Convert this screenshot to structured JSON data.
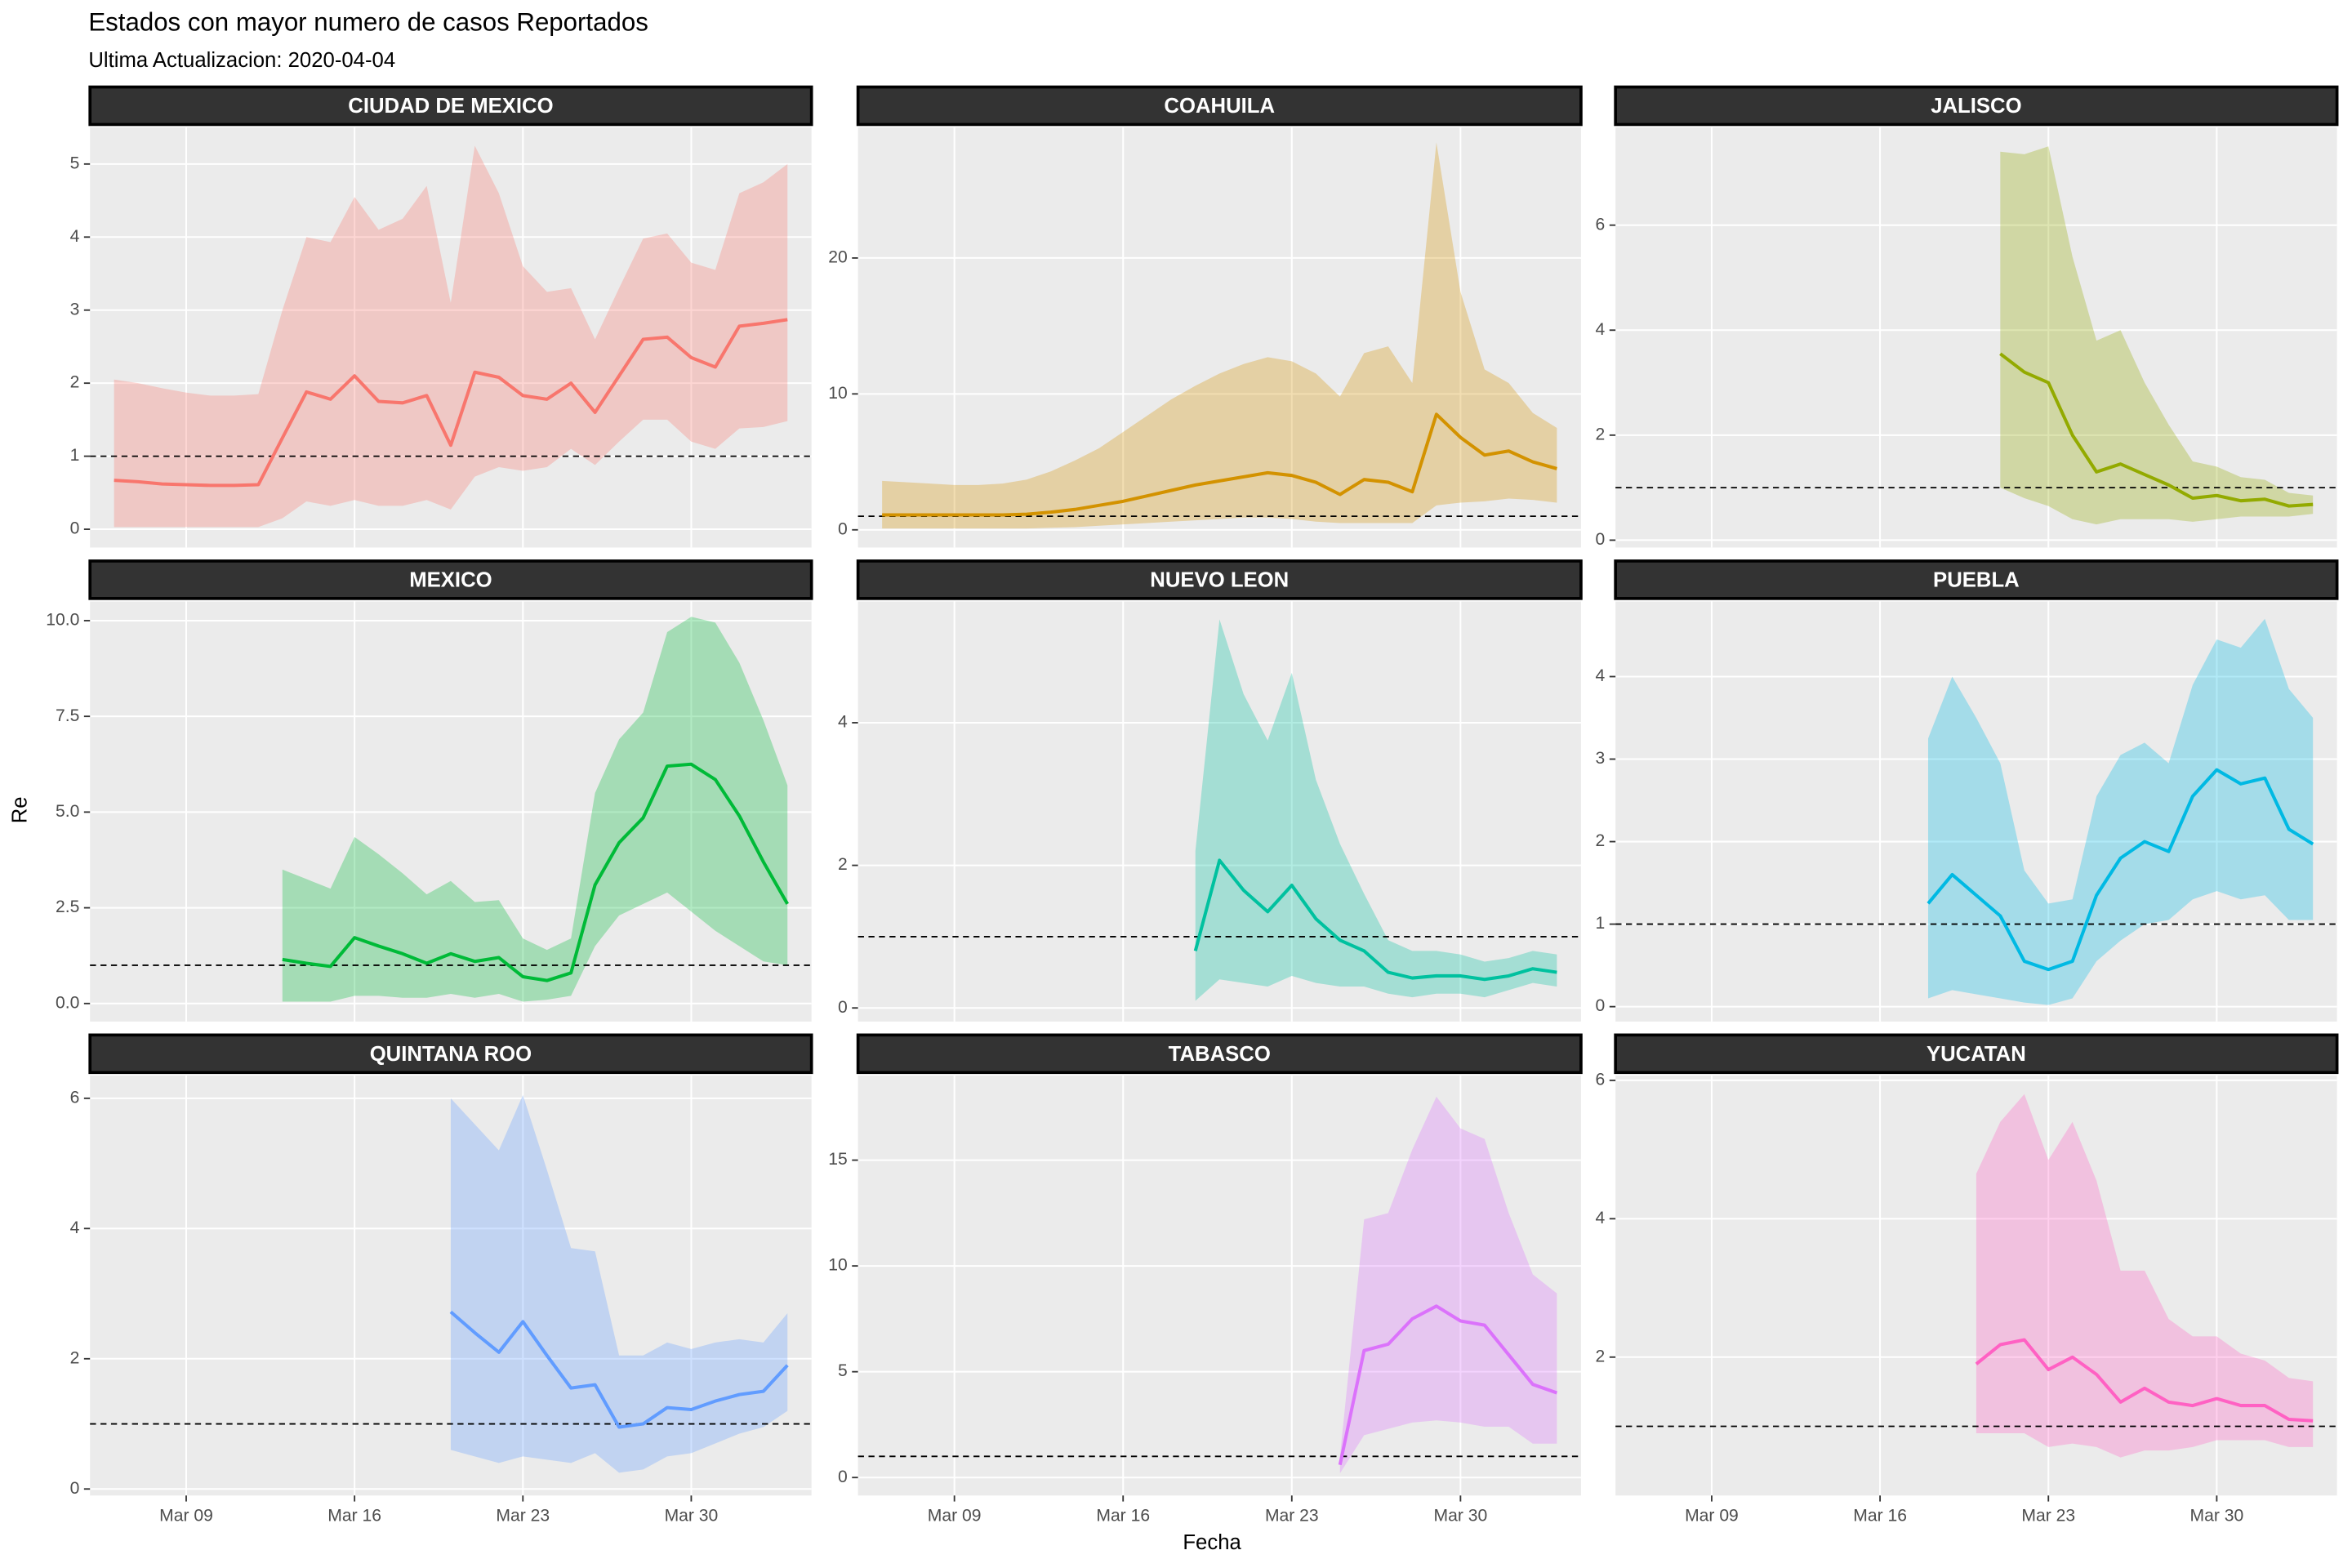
{
  "chart_data": {
    "type": "line",
    "title": "Estados con mayor numero de casos Reportados",
    "subtitle": "Ultima Actualizacion: 2020-04-04",
    "x_label": "Fecha",
    "y_label": "Re",
    "x": [
      "Mar 06",
      "Mar 07",
      "Mar 08",
      "Mar 09",
      "Mar 10",
      "Mar 11",
      "Mar 12",
      "Mar 13",
      "Mar 14",
      "Mar 15",
      "Mar 16",
      "Mar 17",
      "Mar 18",
      "Mar 19",
      "Mar 20",
      "Mar 21",
      "Mar 22",
      "Mar 23",
      "Mar 24",
      "Mar 25",
      "Mar 26",
      "Mar 27",
      "Mar 28",
      "Mar 29",
      "Mar 30",
      "Mar 31",
      "Apr 01",
      "Apr 02",
      "Apr 03"
    ],
    "xlim": [
      "Mar 05",
      "Apr 04"
    ],
    "xticks": [
      "Mar 09",
      "Mar 16",
      "Mar 23",
      "Mar 30"
    ],
    "reference_line": 1,
    "grid": true,
    "panels": [
      {
        "title": "CIUDAD DE MEXICO",
        "color": "#F8766D",
        "ylim": [
          -0.25,
          5.5
        ],
        "yticks": [
          0,
          1,
          2,
          3,
          4,
          5
        ],
        "values": [
          0.67,
          0.65,
          0.62,
          0.61,
          0.6,
          0.6,
          0.61,
          1.25,
          1.88,
          1.78,
          2.1,
          1.75,
          1.73,
          1.83,
          1.15,
          2.15,
          2.08,
          1.83,
          1.78,
          2.0,
          1.6,
          2.1,
          2.6,
          2.63,
          2.35,
          2.22,
          2.78,
          2.82,
          2.87
        ],
        "upper": [
          2.05,
          2.0,
          1.93,
          1.87,
          1.83,
          1.83,
          1.85,
          3.0,
          4.0,
          3.93,
          4.55,
          4.1,
          4.25,
          4.7,
          3.1,
          5.25,
          4.6,
          3.6,
          3.25,
          3.3,
          2.6,
          3.3,
          3.98,
          4.05,
          3.65,
          3.55,
          4.6,
          4.75,
          5.0
        ],
        "lower": [
          0.03,
          0.03,
          0.03,
          0.03,
          0.03,
          0.03,
          0.03,
          0.15,
          0.38,
          0.32,
          0.4,
          0.32,
          0.32,
          0.4,
          0.27,
          0.72,
          0.85,
          0.8,
          0.85,
          1.1,
          0.88,
          1.2,
          1.5,
          1.5,
          1.2,
          1.1,
          1.38,
          1.4,
          1.48
        ]
      },
      {
        "title": "COAHUILA",
        "color": "#D39200",
        "ylim": [
          -1.3,
          29.6
        ],
        "yticks": [
          0,
          10,
          20
        ],
        "values": [
          1.1,
          1.1,
          1.1,
          1.1,
          1.1,
          1.1,
          1.15,
          1.3,
          1.5,
          1.8,
          2.1,
          2.5,
          2.9,
          3.3,
          3.6,
          3.9,
          4.2,
          4.0,
          3.5,
          2.6,
          3.7,
          3.5,
          2.8,
          8.5,
          6.8,
          5.5,
          5.8,
          5.0,
          4.5
        ],
        "upper": [
          3.6,
          3.5,
          3.4,
          3.3,
          3.3,
          3.4,
          3.7,
          4.3,
          5.1,
          6.0,
          7.2,
          8.4,
          9.6,
          10.6,
          11.5,
          12.2,
          12.7,
          12.4,
          11.5,
          9.8,
          13.0,
          13.5,
          10.8,
          28.5,
          17.5,
          11.8,
          10.8,
          8.6,
          7.5
        ],
        "lower": [
          0.1,
          0.1,
          0.1,
          0.1,
          0.1,
          0.1,
          0.1,
          0.15,
          0.2,
          0.3,
          0.4,
          0.5,
          0.6,
          0.7,
          0.8,
          0.9,
          0.9,
          0.8,
          0.6,
          0.5,
          0.5,
          0.5,
          0.5,
          1.8,
          2.0,
          2.1,
          2.3,
          2.2,
          2.0
        ]
      },
      {
        "title": "JALISCO",
        "color": "#93AA00",
        "ylim": [
          -0.14,
          7.86
        ],
        "yticks": [
          0,
          2,
          4,
          6
        ],
        "values": [
          null,
          null,
          null,
          null,
          null,
          null,
          null,
          null,
          null,
          null,
          null,
          null,
          null,
          null,
          null,
          3.55,
          3.2,
          3.0,
          2.0,
          1.3,
          1.45,
          1.25,
          1.05,
          0.8,
          0.85,
          0.75,
          0.78,
          0.65,
          0.68
        ],
        "upper": [
          null,
          null,
          null,
          null,
          null,
          null,
          null,
          null,
          null,
          null,
          null,
          null,
          null,
          null,
          null,
          7.4,
          7.35,
          7.5,
          5.4,
          3.8,
          4.0,
          3.0,
          2.2,
          1.5,
          1.4,
          1.2,
          1.15,
          0.9,
          0.85
        ],
        "lower": [
          null,
          null,
          null,
          null,
          null,
          null,
          null,
          null,
          null,
          null,
          null,
          null,
          null,
          null,
          null,
          1.0,
          0.8,
          0.65,
          0.4,
          0.3,
          0.4,
          0.4,
          0.4,
          0.35,
          0.4,
          0.45,
          0.45,
          0.45,
          0.5
        ]
      },
      {
        "title": "MEXICO",
        "color": "#00BA38",
        "ylim": [
          -0.47,
          10.5
        ],
        "yticks": [
          {
            "value": 0,
            "label": "0.0"
          },
          2.5,
          {
            "value": 5,
            "label": "5.0"
          },
          7.5,
          {
            "value": 10,
            "label": "10.0"
          }
        ],
        "values": [
          null,
          null,
          null,
          null,
          null,
          null,
          null,
          1.15,
          1.05,
          0.97,
          1.72,
          1.5,
          1.3,
          1.05,
          1.3,
          1.1,
          1.2,
          0.7,
          0.6,
          0.8,
          3.1,
          4.2,
          4.85,
          6.2,
          6.25,
          5.85,
          4.9,
          3.7,
          2.6
        ],
        "upper": [
          null,
          null,
          null,
          null,
          null,
          null,
          null,
          3.5,
          3.25,
          3.0,
          4.35,
          3.9,
          3.4,
          2.85,
          3.2,
          2.65,
          2.7,
          1.7,
          1.4,
          1.7,
          5.5,
          6.9,
          7.6,
          9.7,
          10.1,
          9.95,
          8.9,
          7.4,
          5.7
        ],
        "lower": [
          null,
          null,
          null,
          null,
          null,
          null,
          null,
          0.05,
          0.05,
          0.05,
          0.2,
          0.2,
          0.15,
          0.15,
          0.25,
          0.15,
          0.25,
          0.05,
          0.1,
          0.2,
          1.5,
          2.3,
          2.6,
          2.9,
          2.4,
          1.9,
          1.5,
          1.1,
          1.0
        ]
      },
      {
        "title": "NUEVO LEON",
        "color": "#00C19F",
        "ylim": [
          -0.19,
          5.7
        ],
        "yticks": [
          0,
          2,
          4
        ],
        "values": [
          null,
          null,
          null,
          null,
          null,
          null,
          null,
          null,
          null,
          null,
          null,
          null,
          null,
          0.8,
          2.07,
          1.65,
          1.35,
          1.72,
          1.25,
          0.95,
          0.8,
          0.5,
          0.42,
          0.45,
          0.45,
          0.4,
          0.45,
          0.55,
          0.5
        ],
        "upper": [
          null,
          null,
          null,
          null,
          null,
          null,
          null,
          null,
          null,
          null,
          null,
          null,
          null,
          2.2,
          5.45,
          4.4,
          3.75,
          4.7,
          3.2,
          2.3,
          1.6,
          0.95,
          0.8,
          0.8,
          0.75,
          0.65,
          0.7,
          0.8,
          0.75
        ],
        "lower": [
          null,
          null,
          null,
          null,
          null,
          null,
          null,
          null,
          null,
          null,
          null,
          null,
          null,
          0.1,
          0.4,
          0.35,
          0.3,
          0.45,
          0.35,
          0.3,
          0.3,
          0.2,
          0.15,
          0.2,
          0.2,
          0.15,
          0.25,
          0.35,
          0.3
        ]
      },
      {
        "title": "PUEBLA",
        "color": "#00B9E3",
        "ylim": [
          -0.18,
          4.91
        ],
        "yticks": [
          0,
          1,
          2,
          3,
          4
        ],
        "values": [
          null,
          null,
          null,
          null,
          null,
          null,
          null,
          null,
          null,
          null,
          null,
          null,
          1.25,
          1.6,
          1.35,
          1.1,
          0.55,
          0.45,
          0.55,
          1.35,
          1.8,
          2.0,
          1.88,
          2.55,
          2.87,
          2.7,
          2.77,
          2.15,
          1.97
        ],
        "upper": [
          null,
          null,
          null,
          null,
          null,
          null,
          null,
          null,
          null,
          null,
          null,
          null,
          3.25,
          4.0,
          3.5,
          2.95,
          1.65,
          1.25,
          1.3,
          2.55,
          3.05,
          3.2,
          2.95,
          3.9,
          4.45,
          4.35,
          4.7,
          3.85,
          3.5
        ],
        "lower": [
          null,
          null,
          null,
          null,
          null,
          null,
          null,
          null,
          null,
          null,
          null,
          null,
          0.1,
          0.2,
          0.15,
          0.1,
          0.05,
          0.02,
          0.1,
          0.55,
          0.8,
          1.0,
          1.05,
          1.3,
          1.4,
          1.3,
          1.35,
          1.05,
          1.05
        ]
      },
      {
        "title": "QUINTANA ROO",
        "color": "#619CFF",
        "ylim": [
          -0.1,
          6.35
        ],
        "yticks": [
          0,
          2,
          4,
          6
        ],
        "values": [
          null,
          null,
          null,
          null,
          null,
          null,
          null,
          null,
          null,
          null,
          null,
          null,
          null,
          null,
          2.72,
          2.4,
          2.1,
          2.57,
          2.05,
          1.55,
          1.6,
          0.95,
          1.0,
          1.25,
          1.22,
          1.35,
          1.45,
          1.5,
          1.9
        ],
        "upper": [
          null,
          null,
          null,
          null,
          null,
          null,
          null,
          null,
          null,
          null,
          null,
          null,
          null,
          null,
          6.0,
          5.6,
          5.2,
          6.05,
          4.9,
          3.7,
          3.65,
          2.05,
          2.05,
          2.25,
          2.15,
          2.25,
          2.3,
          2.25,
          2.7
        ],
        "lower": [
          null,
          null,
          null,
          null,
          null,
          null,
          null,
          null,
          null,
          null,
          null,
          null,
          null,
          null,
          0.6,
          0.5,
          0.4,
          0.5,
          0.45,
          0.4,
          0.55,
          0.25,
          0.3,
          0.5,
          0.55,
          0.7,
          0.85,
          0.95,
          1.2
        ]
      },
      {
        "title": "TABASCO",
        "color": "#DB72FB",
        "ylim": [
          -0.85,
          19.0
        ],
        "yticks": [
          0,
          5,
          10,
          15
        ],
        "values": [
          null,
          null,
          null,
          null,
          null,
          null,
          null,
          null,
          null,
          null,
          null,
          null,
          null,
          null,
          null,
          null,
          null,
          null,
          null,
          0.6,
          6.0,
          6.3,
          7.5,
          8.1,
          7.4,
          7.2,
          5.8,
          4.4,
          4.0
        ],
        "upper": [
          null,
          null,
          null,
          null,
          null,
          null,
          null,
          null,
          null,
          null,
          null,
          null,
          null,
          null,
          null,
          null,
          null,
          null,
          null,
          1.0,
          12.2,
          12.5,
          15.5,
          18.0,
          16.5,
          16.0,
          12.5,
          9.6,
          8.7
        ],
        "lower": [
          null,
          null,
          null,
          null,
          null,
          null,
          null,
          null,
          null,
          null,
          null,
          null,
          null,
          null,
          null,
          null,
          null,
          null,
          null,
          0.2,
          2.0,
          2.3,
          2.6,
          2.7,
          2.6,
          2.4,
          2.4,
          1.6,
          1.6
        ]
      },
      {
        "title": "YUCATAN",
        "color": "#FF61C3",
        "ylim": [
          0,
          6.07
        ],
        "yticks": [
          2,
          4,
          6
        ],
        "values": [
          null,
          null,
          null,
          null,
          null,
          null,
          null,
          null,
          null,
          null,
          null,
          null,
          null,
          null,
          1.9,
          2.18,
          2.25,
          1.82,
          2.0,
          1.75,
          1.35,
          1.55,
          1.35,
          1.3,
          1.4,
          1.3,
          1.3,
          1.1,
          1.08
        ],
        "upper": [
          null,
          null,
          null,
          null,
          null,
          null,
          null,
          null,
          null,
          null,
          null,
          null,
          null,
          null,
          4.65,
          5.4,
          5.8,
          4.85,
          5.4,
          4.55,
          3.25,
          3.25,
          2.55,
          2.3,
          2.3,
          2.05,
          1.95,
          1.7,
          1.65
        ],
        "lower": [
          null,
          null,
          null,
          null,
          null,
          null,
          null,
          null,
          null,
          null,
          null,
          null,
          null,
          null,
          0.9,
          0.9,
          0.9,
          0.7,
          0.75,
          0.7,
          0.55,
          0.65,
          0.65,
          0.7,
          0.8,
          0.8,
          0.8,
          0.7,
          0.7
        ]
      }
    ]
  }
}
